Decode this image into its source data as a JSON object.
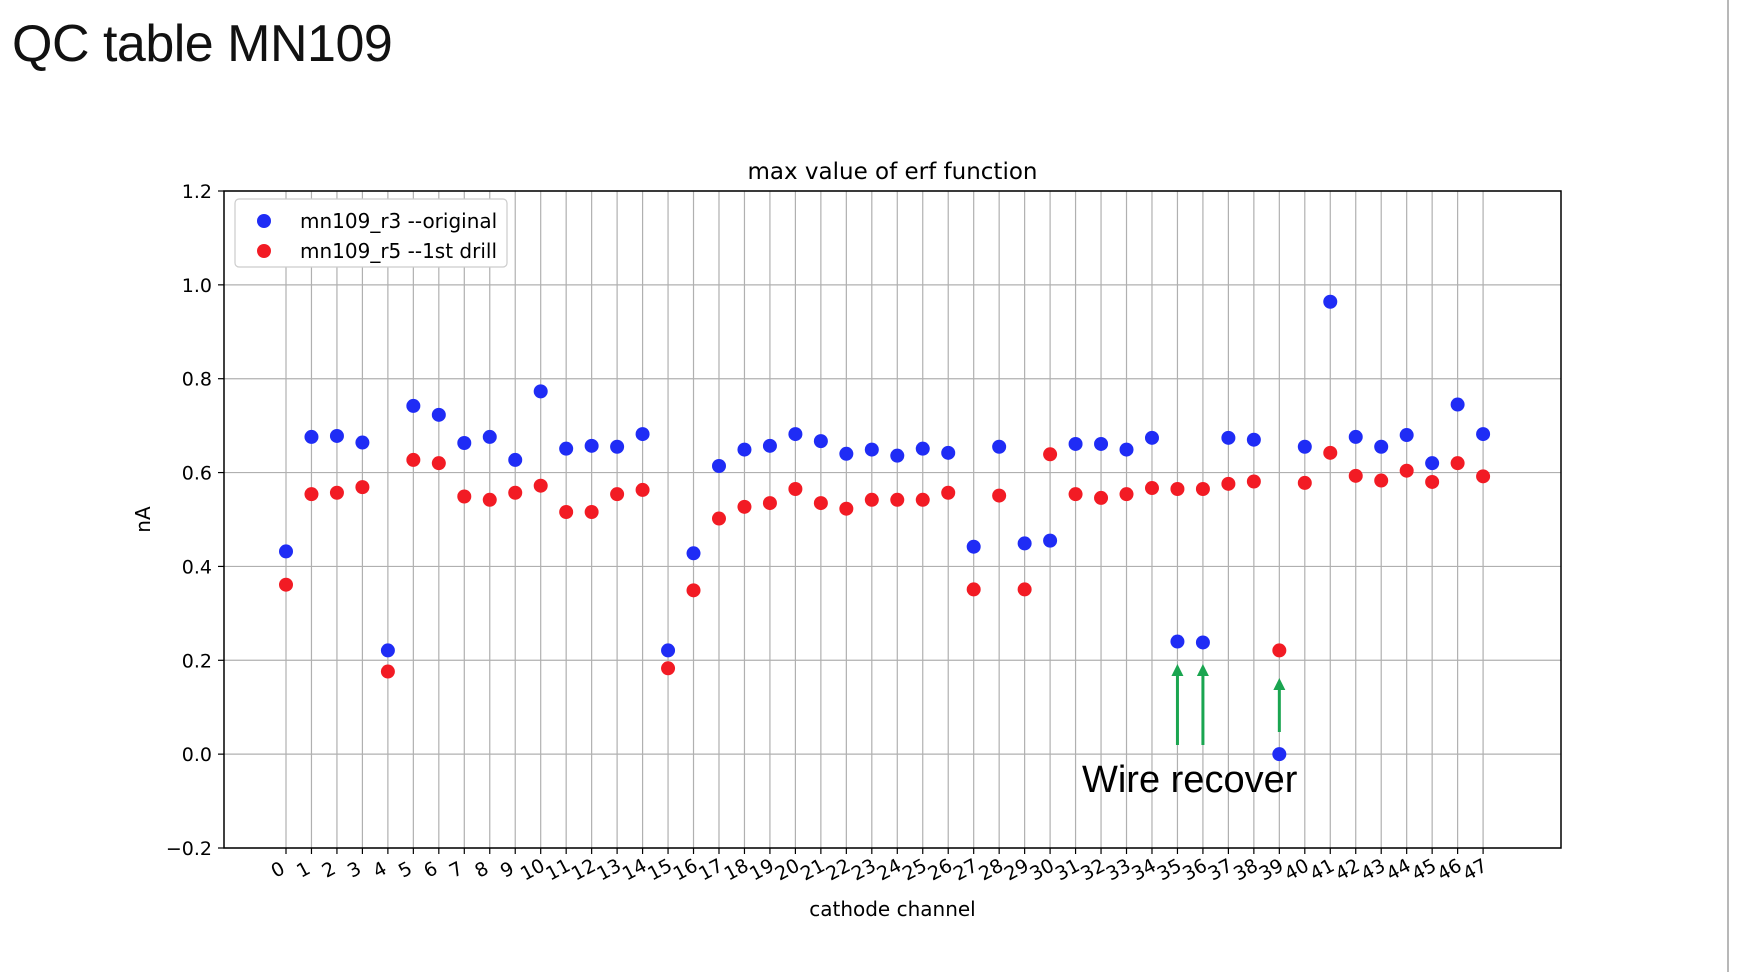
{
  "slide": {
    "title": "QC table MN109"
  },
  "colors": {
    "series_r3": "#1f2cf5",
    "series_r5": "#f21b24",
    "annotation_arrow": "#1aa550",
    "grid": "#b0b0b0"
  },
  "chart_data": {
    "type": "scatter",
    "title": "max value of erf function",
    "xlabel": "cathode channel",
    "ylabel": "nA",
    "ylim": [
      -0.2,
      1.2
    ],
    "yticks": [
      -0.2,
      0.0,
      0.2,
      0.4,
      0.6,
      0.8,
      1.0,
      1.2
    ],
    "ytick_labels": [
      "−0.2",
      "0.0",
      "0.2",
      "0.4",
      "0.6",
      "0.8",
      "1.0",
      "1.2"
    ],
    "x": [
      0,
      1,
      2,
      3,
      4,
      5,
      6,
      7,
      8,
      9,
      10,
      11,
      12,
      13,
      14,
      15,
      16,
      17,
      18,
      19,
      20,
      21,
      22,
      23,
      24,
      25,
      26,
      27,
      28,
      29,
      30,
      31,
      32,
      33,
      34,
      35,
      36,
      37,
      38,
      39,
      40,
      41,
      42,
      43,
      44,
      45,
      46,
      47
    ],
    "xtick_labels": [
      "0",
      "1",
      "2",
      "3",
      "4",
      "5",
      "6",
      "7",
      "8",
      "9",
      "10",
      "11",
      "12",
      "13",
      "14",
      "15",
      "16",
      "17",
      "18",
      "19",
      "20",
      "21",
      "22",
      "23",
      "24",
      "25",
      "26",
      "27",
      "28",
      "29",
      "30",
      "31",
      "32",
      "33",
      "34",
      "35",
      "36",
      "37",
      "38",
      "39",
      "40",
      "41",
      "42",
      "43",
      "44",
      "45",
      "46",
      "47"
    ],
    "grid": true,
    "legend": "upper-left",
    "series": [
      {
        "name": "mn109_r3 --original",
        "values": [
          0.432,
          0.676,
          0.678,
          0.664,
          0.221,
          0.742,
          0.723,
          0.663,
          0.676,
          0.627,
          0.773,
          0.651,
          0.657,
          0.655,
          0.682,
          0.221,
          0.428,
          0.614,
          0.649,
          0.657,
          0.682,
          0.667,
          0.64,
          0.649,
          0.636,
          0.651,
          0.642,
          0.442,
          0.655,
          0.449,
          0.455,
          0.661,
          0.661,
          0.649,
          0.674,
          0.24,
          0.238,
          0.674,
          0.67,
          0.0,
          0.655,
          0.964,
          0.676,
          0.655,
          0.68,
          0.62,
          0.745,
          0.682
        ]
      },
      {
        "name": "mn109_r5 --1st drill",
        "values": [
          0.361,
          0.554,
          0.557,
          0.569,
          0.176,
          0.627,
          0.62,
          0.549,
          0.542,
          0.557,
          0.572,
          0.516,
          0.516,
          0.554,
          0.563,
          0.183,
          0.349,
          0.502,
          0.527,
          0.535,
          0.565,
          0.535,
          0.523,
          0.542,
          0.542,
          0.542,
          0.557,
          0.351,
          0.551,
          0.351,
          0.639,
          0.554,
          0.546,
          0.554,
          0.567,
          0.565,
          0.565,
          0.576,
          0.581,
          0.221,
          0.578,
          0.642,
          0.593,
          0.583,
          0.604,
          0.58,
          0.62,
          0.592
        ]
      }
    ],
    "annotations": [
      {
        "text": "Wire recover",
        "arrows_at_channels": [
          35,
          36,
          39
        ]
      }
    ]
  }
}
